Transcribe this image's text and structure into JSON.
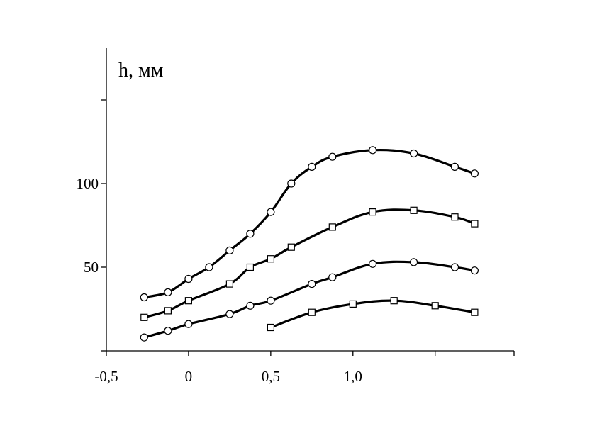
{
  "chart_data": {
    "type": "line",
    "title": "",
    "xlabel": "",
    "ylabel": "h, мм",
    "xlim": [
      -0.5,
      1.98
    ],
    "ylim": [
      0,
      150
    ],
    "x_ticks": [
      {
        "value": -0.5,
        "label": "-0,5"
      },
      {
        "value": 0,
        "label": "0"
      },
      {
        "value": 0.5,
        "label": "0,5"
      },
      {
        "value": 1.0,
        "label": "1,0"
      },
      {
        "value": 1.5,
        "label": ""
      },
      {
        "value": 1.98,
        "label": ""
      }
    ],
    "y_ticks": [
      {
        "value": 0,
        "label": ""
      },
      {
        "value": 50,
        "label": "50"
      },
      {
        "value": 100,
        "label": "100"
      },
      {
        "value": 150,
        "label": ""
      }
    ],
    "grid": false,
    "series": [
      {
        "marker": "circle",
        "x": [
          -0.27,
          -0.125,
          0,
          0.125,
          0.25,
          0.375,
          0.5,
          0.625,
          0.75,
          0.875,
          1.12,
          1.37,
          1.62,
          1.74
        ],
        "y": [
          32,
          35,
          43,
          50,
          60,
          70,
          83,
          100,
          110,
          116,
          120,
          118,
          110,
          106
        ]
      },
      {
        "marker": "square",
        "x": [
          -0.27,
          -0.125,
          0,
          0.25,
          0.375,
          0.5,
          0.625,
          0.875,
          1.12,
          1.37,
          1.62,
          1.74
        ],
        "y": [
          20,
          24,
          30,
          40,
          50,
          55,
          62,
          74,
          83,
          84,
          80,
          76
        ]
      },
      {
        "marker": "circle",
        "x": [
          -0.27,
          -0.125,
          0,
          0.25,
          0.375,
          0.5,
          0.75,
          0.875,
          1.12,
          1.37,
          1.62,
          1.74
        ],
        "y": [
          8,
          12,
          16,
          22,
          27,
          30,
          40,
          44,
          52,
          53,
          50,
          48
        ]
      },
      {
        "marker": "square",
        "x": [
          0.5,
          0.75,
          1.0,
          1.25,
          1.5,
          1.74
        ],
        "y": [
          14,
          23,
          28,
          30,
          27,
          23
        ]
      }
    ]
  }
}
